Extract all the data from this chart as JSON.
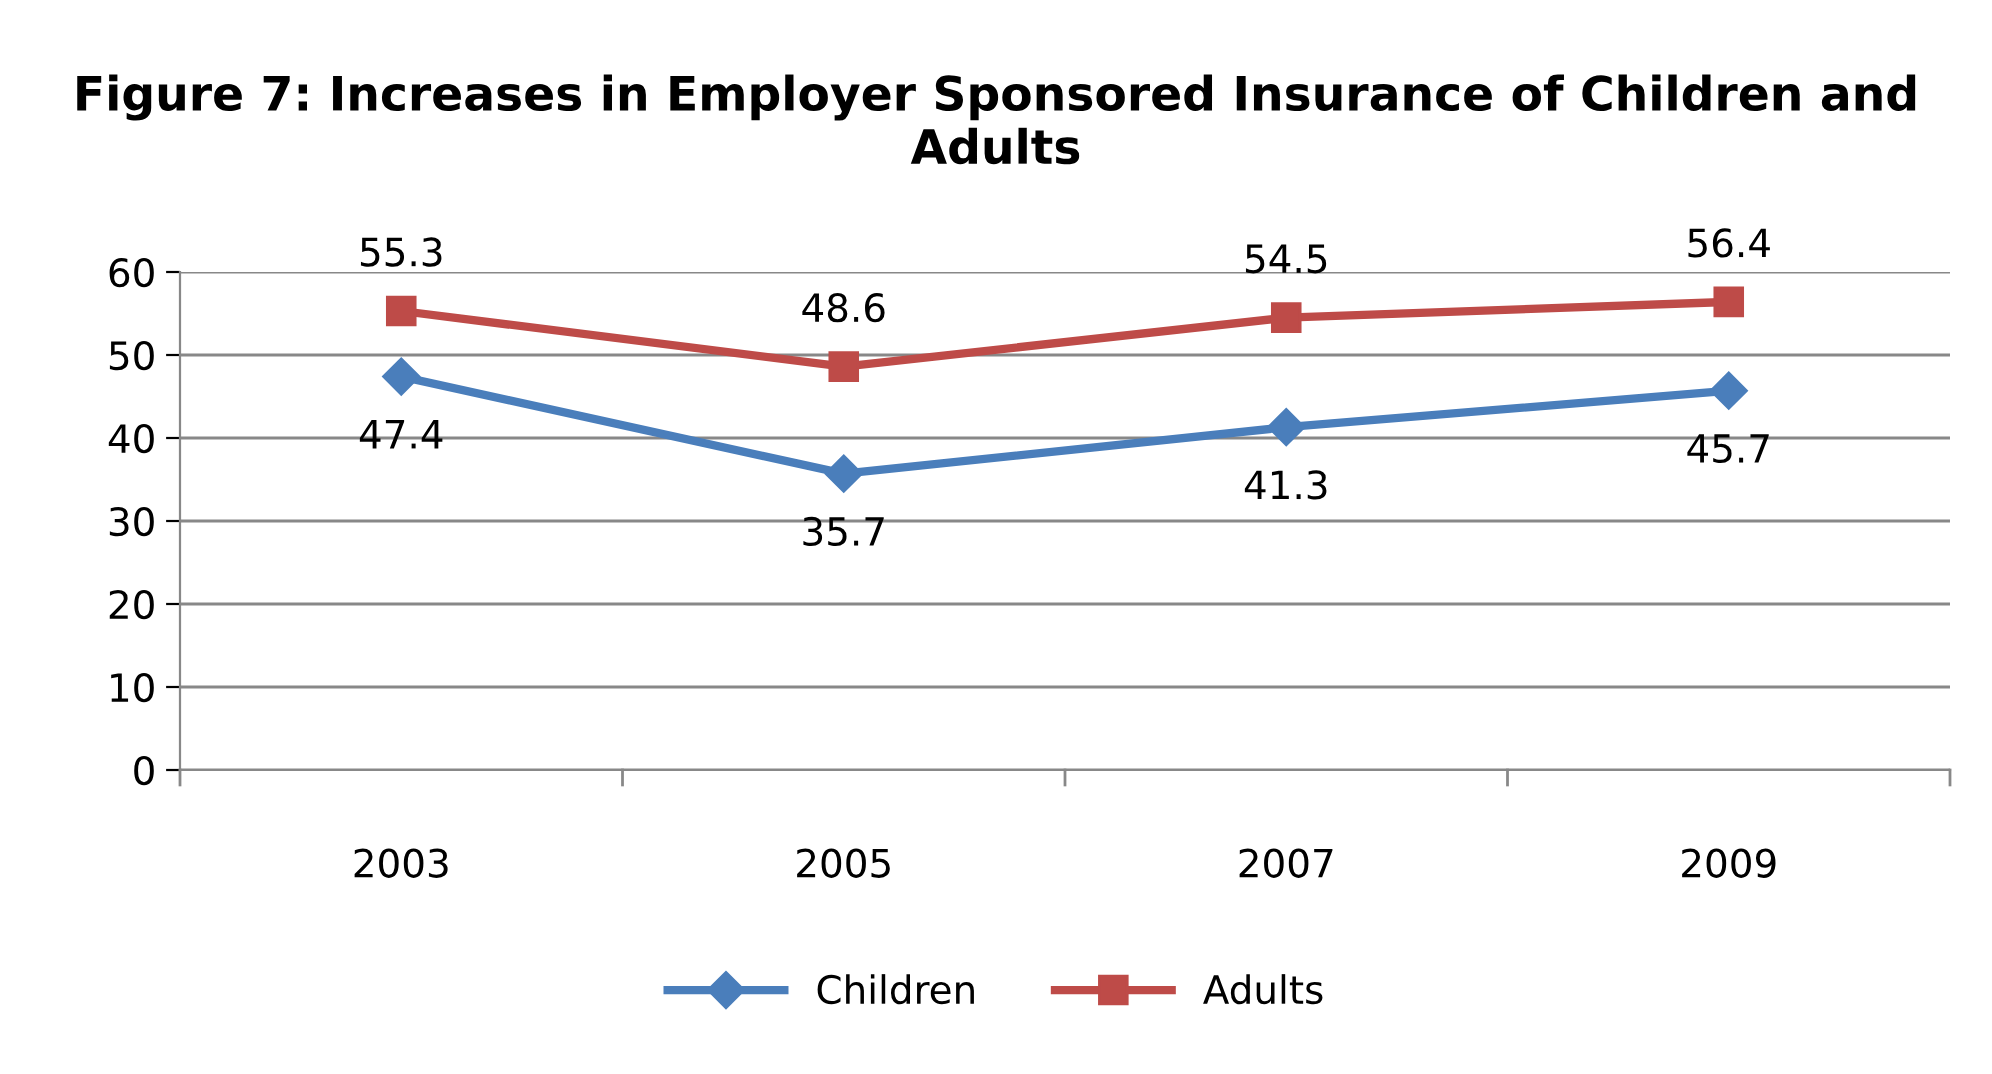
{
  "chart_data": {
    "type": "line",
    "title": "Figure 7: Increases in Employer Sponsored Insurance of Children and Adults",
    "categories": [
      "2003",
      "2005",
      "2007",
      "2009"
    ],
    "series": [
      {
        "name": "Children",
        "color": "#4a7ebb",
        "marker": "diamond",
        "values": [
          47.4,
          35.7,
          41.3,
          45.7
        ]
      },
      {
        "name": "Adults",
        "color": "#be4b48",
        "marker": "square",
        "values": [
          55.3,
          48.6,
          54.5,
          56.4
        ]
      }
    ],
    "ylim": [
      0,
      60
    ],
    "yticks": [
      0,
      10,
      20,
      30,
      40,
      50,
      60
    ],
    "grid": "y",
    "legend": "bottom",
    "data_labels": true,
    "line_style": "solid"
  }
}
